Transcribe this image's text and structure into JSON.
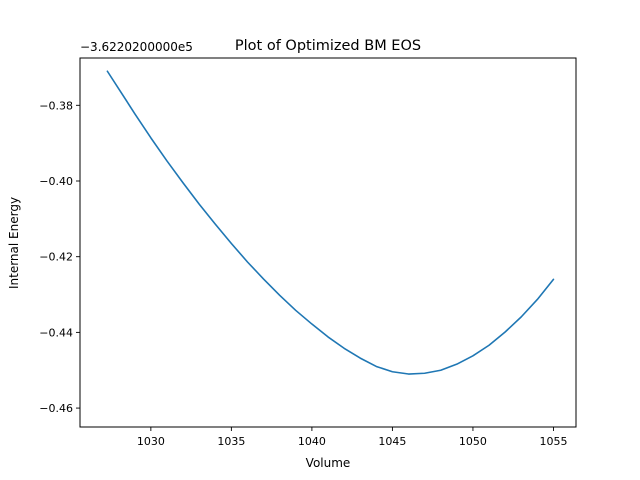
{
  "chart_data": {
    "type": "line",
    "title": "Plot of Optimized BM EOS",
    "xlabel": "Volume",
    "ylabel": "Internal Energy",
    "offset_label": "−3.6220200000e5",
    "xlim": [
      1025.6,
      1056.4
    ],
    "ylim": [
      -0.465,
      -0.3675
    ],
    "xticks": [
      1030,
      1035,
      1040,
      1045,
      1050,
      1055
    ],
    "xtick_labels": [
      "1030",
      "1035",
      "1040",
      "1045",
      "1050",
      "1055"
    ],
    "yticks": [
      -0.38,
      -0.4,
      -0.42,
      -0.44,
      -0.46
    ],
    "ytick_labels": [
      "−0.38",
      "−0.40",
      "−0.42",
      "−0.44",
      "−0.46"
    ],
    "grid": false,
    "color": "#1f77b4",
    "series": [
      {
        "x": [
          1027.3,
          1028,
          1029,
          1030,
          1031,
          1032,
          1033,
          1034,
          1035,
          1036,
          1037,
          1038,
          1039,
          1040,
          1041,
          1042,
          1043,
          1044,
          1045,
          1046,
          1047,
          1048,
          1049,
          1050,
          1051,
          1052,
          1053,
          1054,
          1055
        ],
        "y": [
          -0.371,
          -0.3756,
          -0.3822,
          -0.3886,
          -0.3947,
          -0.4005,
          -0.4061,
          -0.4114,
          -0.4165,
          -0.4214,
          -0.4259,
          -0.4302,
          -0.4342,
          -0.4378,
          -0.4412,
          -0.4442,
          -0.4468,
          -0.449,
          -0.4504,
          -0.451,
          -0.4508,
          -0.45,
          -0.4484,
          -0.4462,
          -0.4434,
          -0.4399,
          -0.4359,
          -0.4313,
          -0.426
        ]
      }
    ]
  }
}
